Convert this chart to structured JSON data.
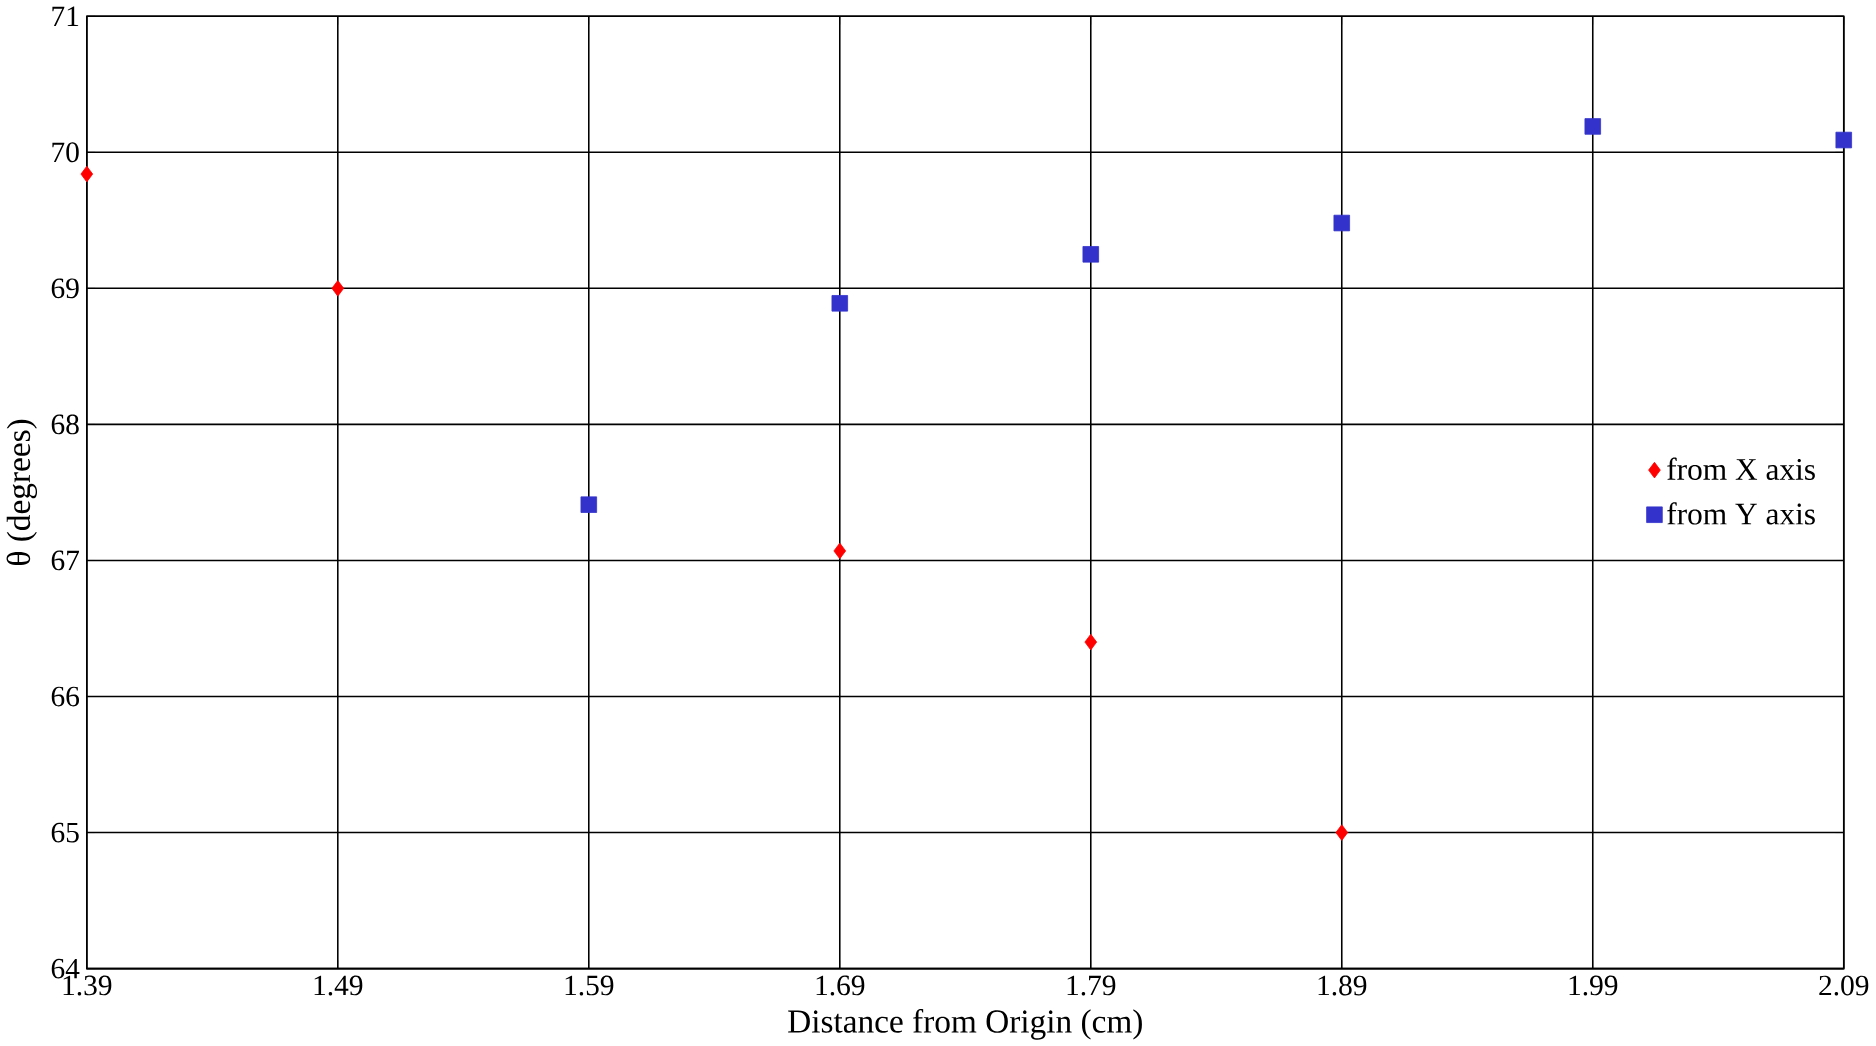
{
  "chart_data": {
    "type": "scatter",
    "xlabel": "Distance from Origin (cm)",
    "ylabel": "θ (degrees)",
    "xlim": [
      1.39,
      2.09
    ],
    "ylim": [
      64,
      71
    ],
    "xticks": [
      1.39,
      1.49,
      1.59,
      1.69,
      1.79,
      1.89,
      1.99,
      2.09
    ],
    "yticks": [
      64,
      65,
      66,
      67,
      68,
      69,
      70,
      71
    ],
    "grid": true,
    "legend": "right",
    "series": [
      {
        "name": "from X axis",
        "color": "#ff0000",
        "marker": "diamond",
        "x": [
          1.39,
          1.49,
          1.69,
          1.79,
          1.89
        ],
        "values": [
          69.84,
          69.0,
          67.07,
          66.4,
          65.0
        ]
      },
      {
        "name": "from Y axis",
        "color": "#3333cc",
        "marker": "square",
        "x": [
          1.59,
          1.69,
          1.79,
          1.89,
          1.99,
          2.09
        ],
        "values": [
          67.41,
          68.89,
          69.25,
          69.48,
          70.19,
          70.09
        ]
      }
    ]
  }
}
